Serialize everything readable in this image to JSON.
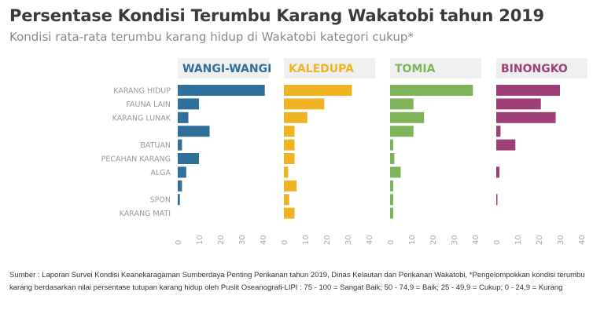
{
  "title": "Persentase Kondisi Terumbu Karang Wakatobi tahun 2019",
  "subtitle": "Kondisi rata-rata terumbu karang hidup di Wakatobi kategori cukup*",
  "source": "Sumber : Laporan Survei Kondisi Keanekaragaman Sumberdaya Penting Perikanan tahun 2019, Dinas Kelautan dan Perikanan Wakatobi, *Pengelompokkan kondisi terumbu karang berdasarkan nilai persentase tutupan karang hidup oleh Puslit Oseanografi-LIPI : 75 - 100 = Sangat Baik; 50 - 74,9 = Baik; 25 - 49,9 = Cukup; 0 - 24,9 = Kurang",
  "chart_data": {
    "type": "bar",
    "orientation": "horizontal",
    "categories": [
      "KARANG HIDUP",
      "FAUNA LAIN",
      "KARANG LUNAK",
      "",
      "BATUAN",
      "PECAHAN KARANG",
      "ALGA",
      "",
      "SPON",
      "KARANG MATI"
    ],
    "xlim": [
      0,
      40
    ],
    "xticks": [
      0,
      10,
      20,
      30,
      40
    ],
    "panels": [
      {
        "name": "WANGI-WANGI",
        "color": "#2f6f9a",
        "values": [
          41,
          10,
          5,
          15,
          2,
          10,
          4,
          2,
          1,
          0
        ]
      },
      {
        "name": "KALEDUPA",
        "color": "#f0b324",
        "values": [
          32,
          19,
          11,
          5,
          5,
          5,
          2,
          6,
          2.5,
          5
        ]
      },
      {
        "name": "TOMIA",
        "color": "#7db45a",
        "values": [
          39,
          11,
          16,
          11,
          1.5,
          2,
          5,
          1.5,
          1.5,
          1.5
        ]
      },
      {
        "name": "BINONGKO",
        "color": "#9e3f77",
        "values": [
          30,
          21,
          28,
          2,
          9,
          0,
          1.5,
          0,
          0.5,
          0
        ]
      }
    ]
  }
}
